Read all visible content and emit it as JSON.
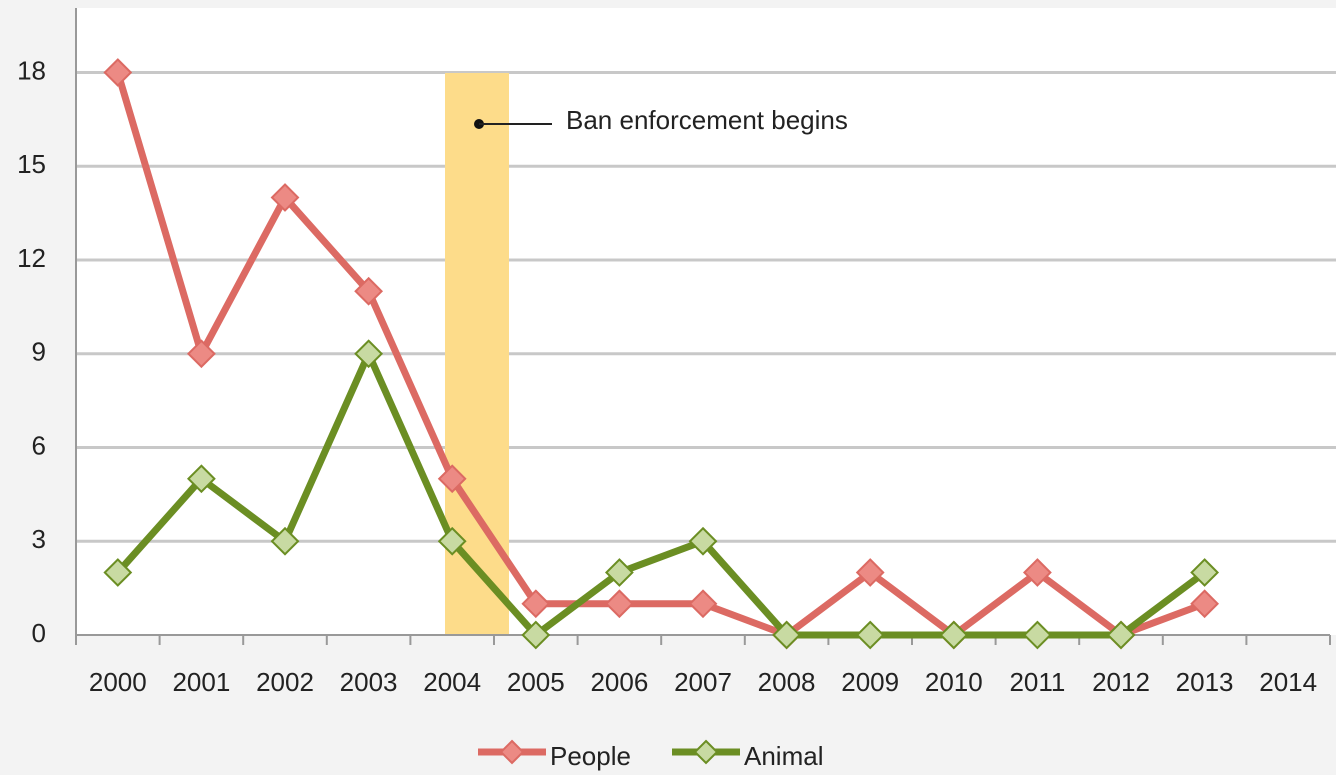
{
  "chart_data": {
    "type": "line",
    "categories": [
      "2000",
      "2001",
      "2002",
      "2003",
      "2004",
      "2005",
      "2006",
      "2007",
      "2008",
      "2009",
      "2010",
      "2011",
      "2012",
      "2013",
      "2014"
    ],
    "series": [
      {
        "name": "People",
        "color": "#dc6a63",
        "marker_color": "#ec8a84",
        "values": [
          18,
          9,
          14,
          11,
          5,
          1,
          1,
          1,
          0,
          2,
          0,
          2,
          0,
          1,
          null
        ]
      },
      {
        "name": "Animal",
        "color": "#6b8e23",
        "marker_color": "#c8daa2",
        "values": [
          2,
          5,
          3,
          9,
          3,
          0,
          2,
          3,
          0,
          0,
          0,
          0,
          0,
          2,
          null
        ]
      }
    ],
    "ylim": [
      0,
      20
    ],
    "yticks": [
      0,
      3,
      6,
      9,
      12,
      15,
      18
    ],
    "grid": true,
    "annotation": "Ban enforcement begins",
    "highlight_color": "#fddc8a"
  }
}
